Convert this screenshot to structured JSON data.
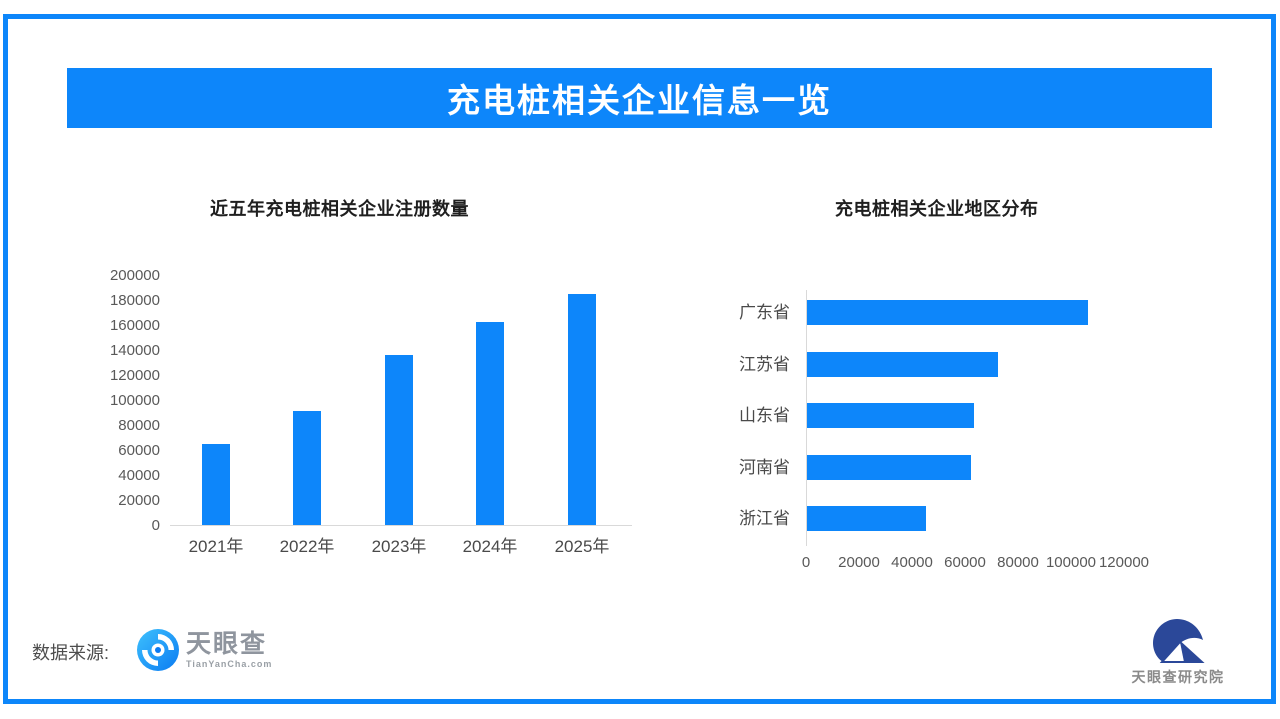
{
  "banner": {
    "title": "充电桩相关企业信息一览"
  },
  "footer": {
    "source_label": "数据来源:",
    "tianyancha": {
      "name": "天眼查",
      "domain": "TianYanCha.com"
    },
    "research_institute": {
      "name": "天眼查研究院"
    }
  },
  "colors": {
    "accent": "#0d86fa",
    "bar": "#0d86fa",
    "axis_text": "#595959",
    "cat_text": "#4a4a4a",
    "title_text": "#1f1f1f",
    "axis_line": "#d9d9d9",
    "navy_logo": "#2b4899",
    "wordmark_gray": "#8f959e"
  },
  "chart_data": [
    {
      "type": "bar",
      "orientation": "vertical",
      "title": "近五年充电桩相关企业注册数量",
      "categories": [
        "2021年",
        "2022年",
        "2023年",
        "2024年",
        "2025年"
      ],
      "values": [
        65000,
        91000,
        136000,
        162000,
        185000
      ],
      "ylim": [
        0,
        200000
      ],
      "ytick_step": 20000,
      "grid": false,
      "legend": "none"
    },
    {
      "type": "bar",
      "orientation": "horizontal",
      "title": "充电桩相关企业地区分布",
      "categories": [
        "广东省",
        "江苏省",
        "山东省",
        "河南省",
        "浙江省"
      ],
      "values": [
        106000,
        72000,
        63000,
        62000,
        45000
      ],
      "xlim": [
        0,
        120000
      ],
      "xtick_step": 20000,
      "grid": false,
      "legend": "none"
    }
  ]
}
